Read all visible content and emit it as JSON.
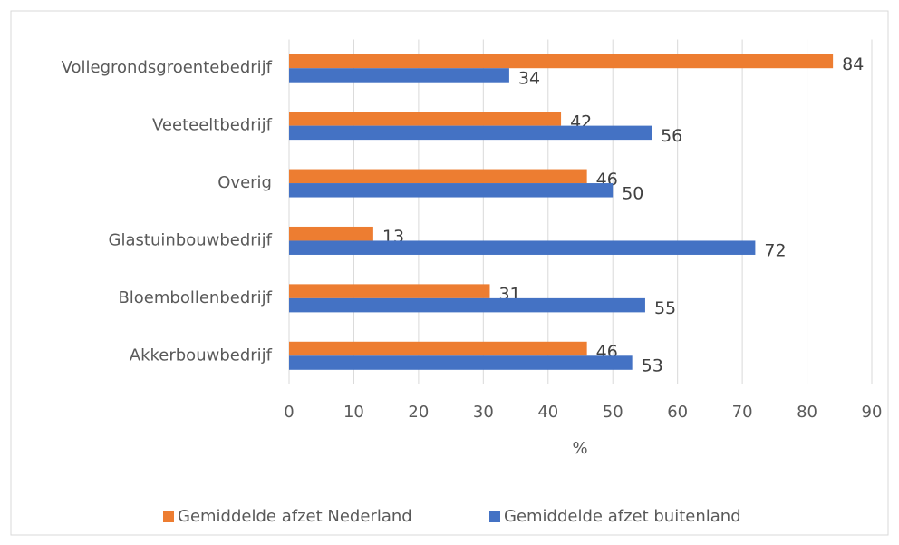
{
  "chart_data": {
    "type": "bar",
    "orientation": "horizontal",
    "categories": [
      "Vollegrondsgroentebedrijf",
      "Veeteeltbedrijf",
      "Overig",
      "Glastuinbouwbedrijf",
      "Bloembollenbedrijf",
      "Akkerbouwbedrijf"
    ],
    "series": [
      {
        "name": "Gemiddelde afzet Nederland",
        "color": "#ED7D31",
        "values": [
          84,
          42,
          46,
          13,
          31,
          46
        ]
      },
      {
        "name": "Gemiddelde afzet buitenland",
        "color": "#4472C4",
        "values": [
          34,
          56,
          50,
          72,
          55,
          53
        ]
      }
    ],
    "xlabel": "%",
    "xlim": [
      0,
      90
    ],
    "xticks": [
      0,
      10,
      20,
      30,
      40,
      50,
      60,
      70,
      80,
      90
    ],
    "grid": true,
    "legend": "bottom"
  }
}
